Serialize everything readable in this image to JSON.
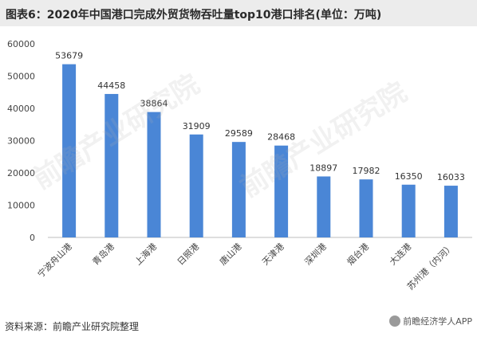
{
  "title": "图表6：2020年中国港口完成外贸货物吞吐量top10港口排名(单位：万吨)",
  "source": "资料来源：前瞻产业研究院整理",
  "watermark": "前瞻产业研究院",
  "brand": "前瞻经济学人APP",
  "colors": {
    "bar": "#4a86d6",
    "axis": "#bdbdbd",
    "title_bg": "#ececec"
  },
  "chart_data": {
    "type": "bar",
    "title": "图表6：2020年中国港口完成外贸货物吞吐量top10港口排名(单位：万吨)",
    "xlabel": "",
    "ylabel": "",
    "ylim": [
      0,
      60000
    ],
    "yticks": [
      0,
      10000,
      20000,
      30000,
      40000,
      50000,
      60000
    ],
    "grid": false,
    "categories": [
      "宁波舟山港",
      "青岛港",
      "上海港",
      "日照港",
      "唐山港",
      "天津港",
      "深圳港",
      "烟台港",
      "大连港",
      "苏州港（内河）"
    ],
    "values": [
      53679,
      44458,
      38864,
      31909,
      29589,
      28468,
      18897,
      17982,
      16350,
      16033
    ]
  }
}
